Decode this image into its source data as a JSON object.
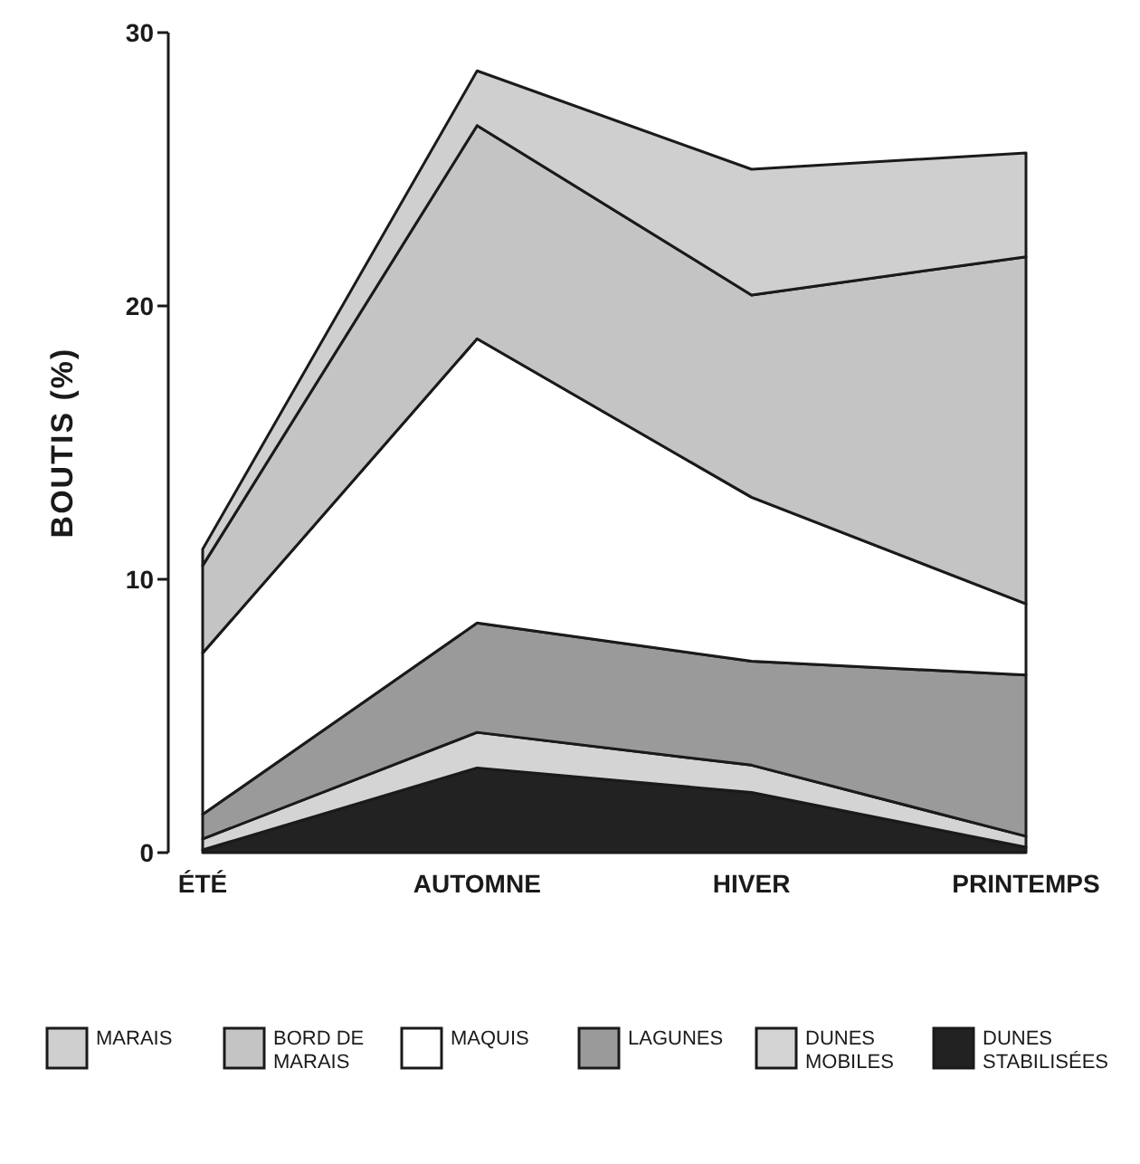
{
  "chart_data": {
    "type": "area",
    "stacked": true,
    "ylabel": "BOUTIS (%)",
    "categories": [
      "ÉTÉ",
      "AUTOMNE",
      "HIVER",
      "PRINTEMPS"
    ],
    "ylim": [
      0,
      30
    ],
    "yticks": [
      0,
      10,
      20,
      30
    ],
    "legend": "bottom",
    "series": [
      {
        "name": "DUNES STABILISÉES",
        "color": "#222222",
        "values": [
          0.1,
          3.1,
          2.2,
          0.2
        ]
      },
      {
        "name": "DUNES MOBILES",
        "color": "#d4d4d4",
        "values": [
          0.4,
          1.3,
          1.0,
          0.4
        ]
      },
      {
        "name": "LAGUNES",
        "color": "#9a9a9a",
        "values": [
          0.9,
          4.0,
          3.8,
          5.9
        ]
      },
      {
        "name": "MAQUIS",
        "color": "#ffffff",
        "values": [
          5.9,
          10.4,
          6.0,
          2.6
        ]
      },
      {
        "name": "BORD DE MARAIS",
        "color": "#c4c4c4",
        "values": [
          3.2,
          7.8,
          7.4,
          12.7
        ]
      },
      {
        "name": "MARAIS",
        "color": "#cfcfcf",
        "values": [
          0.6,
          2.0,
          4.6,
          3.8
        ]
      }
    ]
  }
}
